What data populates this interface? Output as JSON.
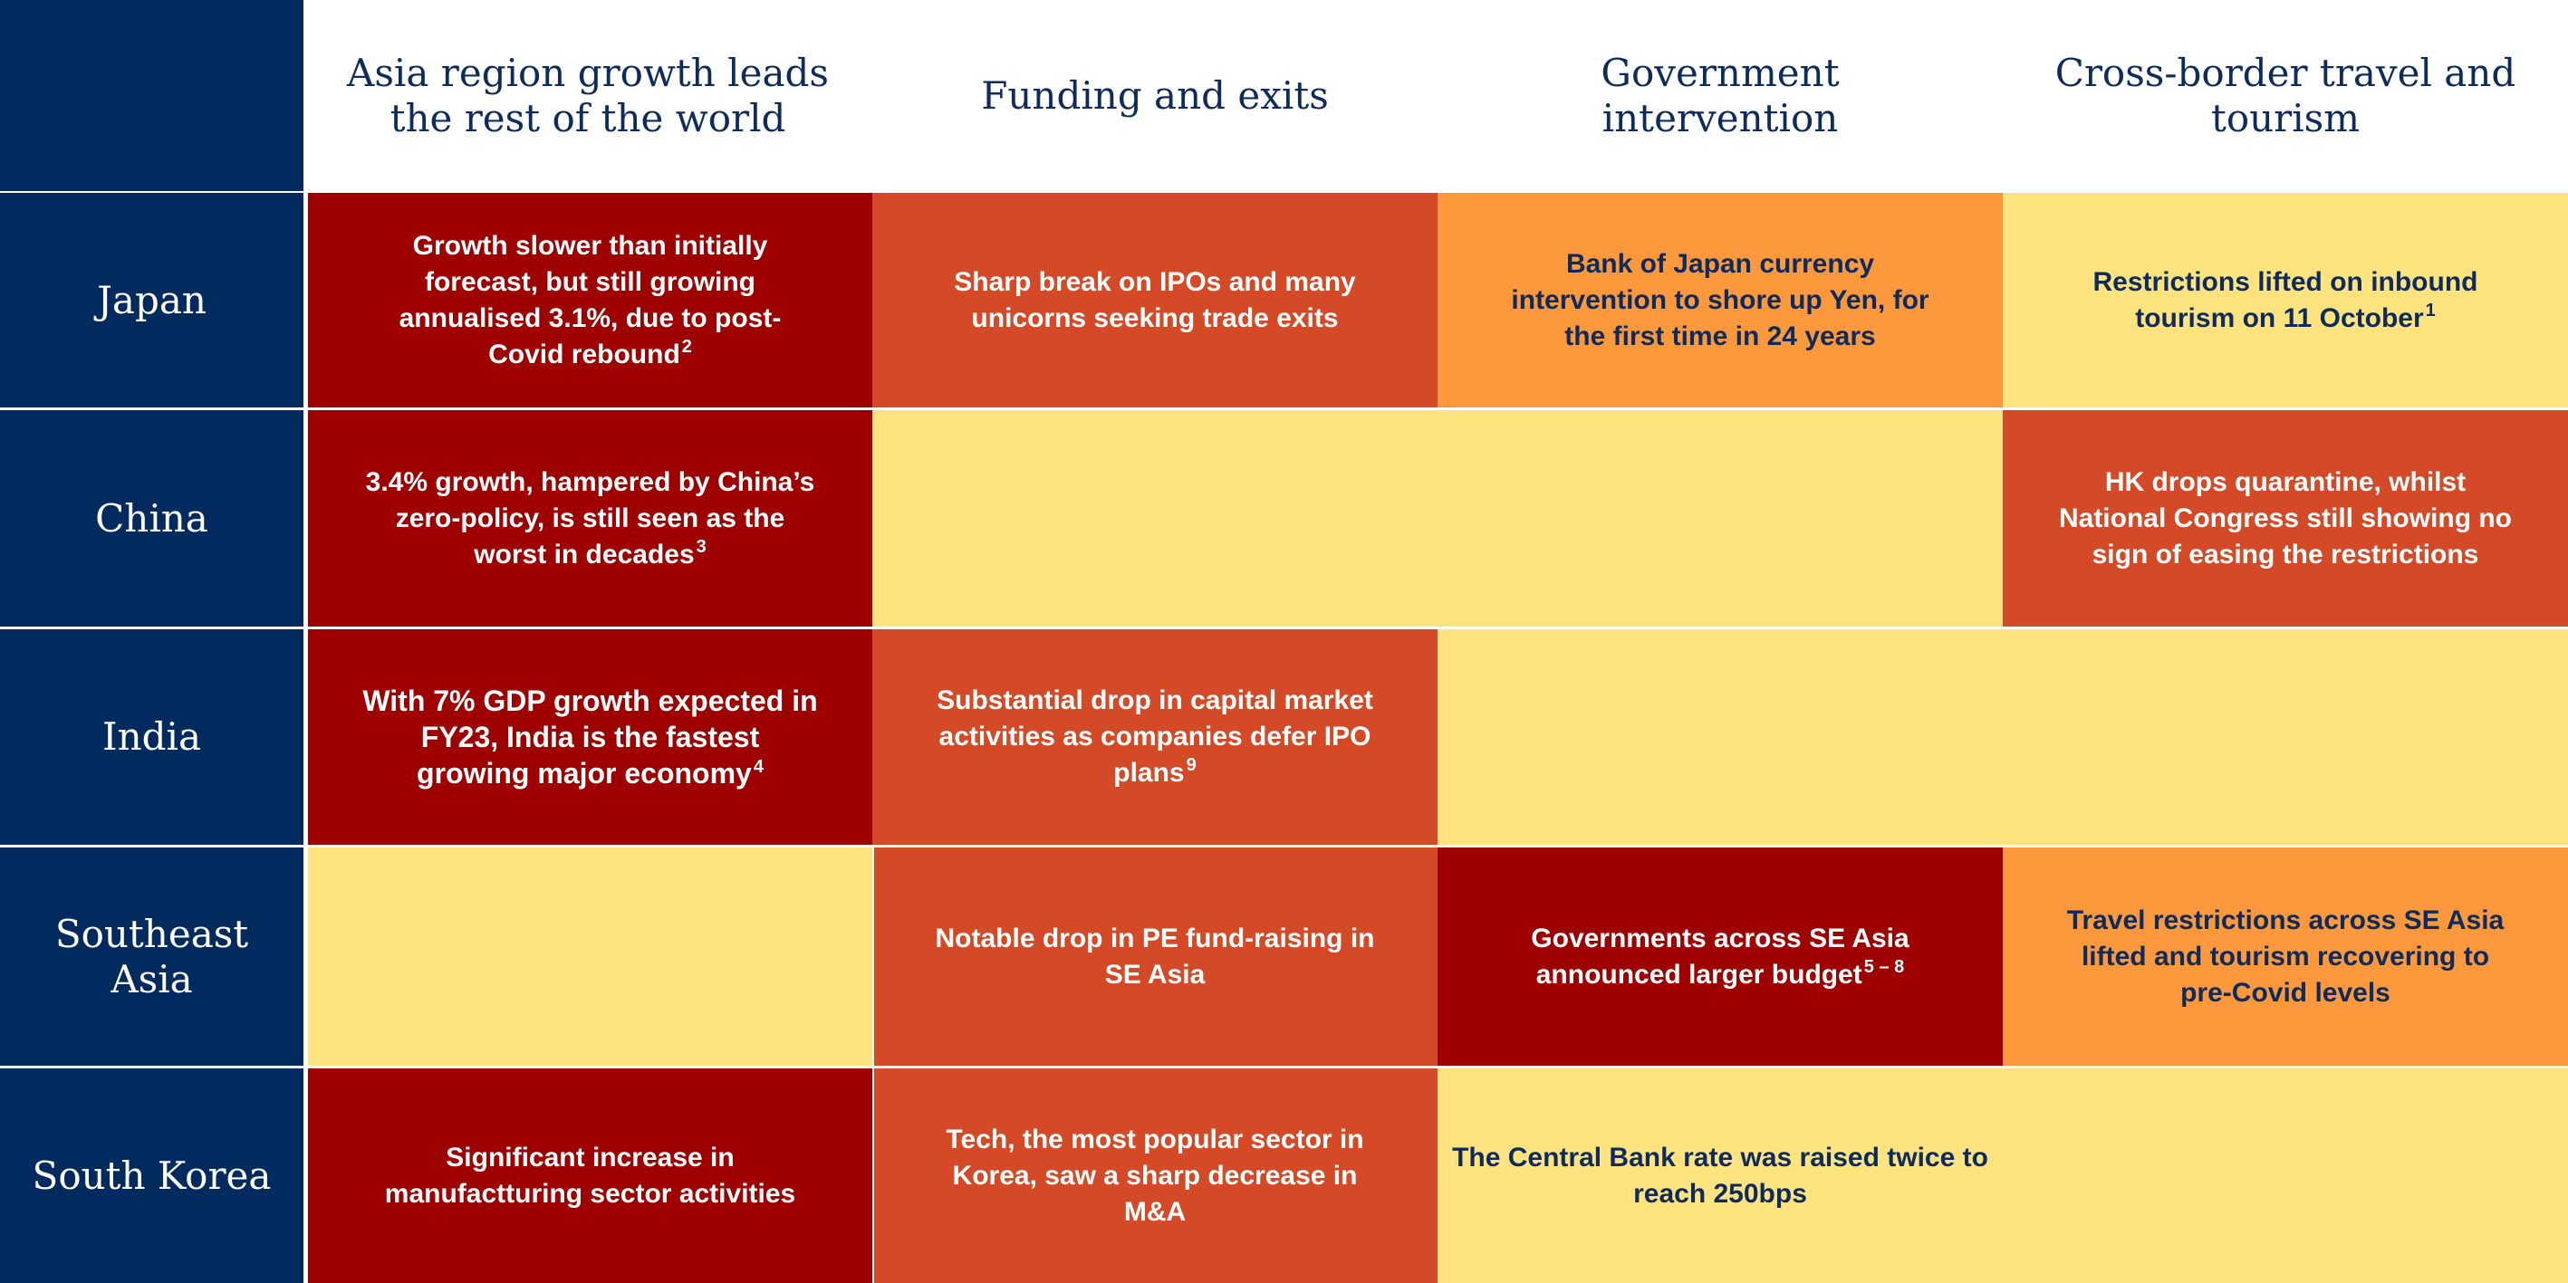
{
  "colors": {
    "navy": "#012a5e",
    "dark_red": "#9e0000",
    "red": "#d44a26",
    "orange": "#fd983c",
    "yellow": "#fee37f",
    "dark_text": "#0d2b5c"
  },
  "columns": [
    "Asia region growth leads the rest of the world",
    "Funding and exits",
    "Government intervention",
    "Cross-border travel and tourism"
  ],
  "rows": [
    "Japan",
    "China",
    "India",
    "Southeast Asia",
    "South Korea"
  ],
  "cells": {
    "japan_growth": {
      "text": "Growth slower than initially forecast, but still growing annualised 3.1%, due to post-Covid rebound",
      "note": "2",
      "level": "dark_red"
    },
    "japan_funding": {
      "text": "Sharp break on IPOs and many unicorns seeking trade exits",
      "note": "",
      "level": "red"
    },
    "japan_government": {
      "text": "Bank of Japan currency intervention to shore up Yen, for the first time in 24 years",
      "note": "",
      "level": "orange"
    },
    "japan_travel": {
      "text": "Restrictions lifted on inbound tourism on 11 October",
      "note": "1",
      "level": "yellow"
    },
    "china_growth": {
      "text": "3.4% growth, hampered by China’s zero-policy, is still seen as the worst in decades",
      "note": "3",
      "level": "dark_red"
    },
    "china_funding_government": {
      "text": "",
      "note": "",
      "level": "yellow"
    },
    "china_travel": {
      "text": "HK drops quarantine, whilst National Congress still showing no sign of easing the restrictions",
      "note": "",
      "level": "red"
    },
    "india_growth": {
      "text": "With 7% GDP growth expected in FY23, India is the fastest growing major economy",
      "note": "4",
      "level": "dark_red"
    },
    "india_funding": {
      "text": "Substantial drop in capital market activities as companies defer IPO plans",
      "note": "9",
      "level": "red"
    },
    "india_government_travel": {
      "text": "",
      "note": "",
      "level": "yellow"
    },
    "sea_growth": {
      "text": "",
      "note": "",
      "level": "yellow"
    },
    "sea_funding": {
      "text": "Notable drop in PE fund-raising in SE Asia",
      "note": "",
      "level": "red"
    },
    "sea_government": {
      "text": "Governments across SE Asia announced larger budget",
      "note": "5 – 8",
      "level": "dark_red"
    },
    "sea_travel": {
      "text": "Travel restrictions across SE Asia lifted and tourism recovering to pre-Covid levels",
      "note": "",
      "level": "orange"
    },
    "korea_growth": {
      "text": "Significant increase in manufactturing sector activities",
      "note": "",
      "level": "dark_red"
    },
    "korea_funding": {
      "text": "Tech, the most popular sector in Korea, saw a sharp decrease in M&A",
      "note": "",
      "level": "red"
    },
    "korea_government_travel": {
      "text": "The Central Bank rate was raised twice to reach 250bps",
      "note": "",
      "level": "yellow"
    }
  }
}
